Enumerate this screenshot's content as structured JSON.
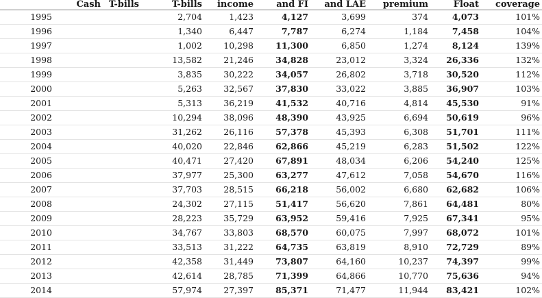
{
  "table": {
    "headers": [
      "",
      "Cash",
      "T-bills",
      "T-bills",
      "income",
      "and FI",
      "and LAE",
      "premium",
      "Float",
      "coverage"
    ],
    "rows": [
      {
        "year": "1995",
        "cash": "",
        "tbills1": "",
        "tbills2": "2,704",
        "income": "1,423",
        "andfi": "4,127",
        "andlae": "3,699",
        "premium": "374",
        "float": "4,073",
        "coverage": "101%"
      },
      {
        "year": "1996",
        "cash": "",
        "tbills1": "",
        "tbills2": "1,340",
        "income": "6,447",
        "andfi": "7,787",
        "andlae": "6,274",
        "premium": "1,184",
        "float": "7,458",
        "coverage": "104%"
      },
      {
        "year": "1997",
        "cash": "",
        "tbills1": "",
        "tbills2": "1,002",
        "income": "10,298",
        "andfi": "11,300",
        "andlae": "6,850",
        "premium": "1,274",
        "float": "8,124",
        "coverage": "139%"
      },
      {
        "year": "1998",
        "cash": "",
        "tbills1": "",
        "tbills2": "13,582",
        "income": "21,246",
        "andfi": "34,828",
        "andlae": "23,012",
        "premium": "3,324",
        "float": "26,336",
        "coverage": "132%"
      },
      {
        "year": "1999",
        "cash": "",
        "tbills1": "",
        "tbills2": "3,835",
        "income": "30,222",
        "andfi": "34,057",
        "andlae": "26,802",
        "premium": "3,718",
        "float": "30,520",
        "coverage": "112%"
      },
      {
        "year": "2000",
        "cash": "",
        "tbills1": "",
        "tbills2": "5,263",
        "income": "32,567",
        "andfi": "37,830",
        "andlae": "33,022",
        "premium": "3,885",
        "float": "36,907",
        "coverage": "103%"
      },
      {
        "year": "2001",
        "cash": "",
        "tbills1": "",
        "tbills2": "5,313",
        "income": "36,219",
        "andfi": "41,532",
        "andlae": "40,716",
        "premium": "4,814",
        "float": "45,530",
        "coverage": "91%"
      },
      {
        "year": "2002",
        "cash": "",
        "tbills1": "",
        "tbills2": "10,294",
        "income": "38,096",
        "andfi": "48,390",
        "andlae": "43,925",
        "premium": "6,694",
        "float": "50,619",
        "coverage": "96%"
      },
      {
        "year": "2003",
        "cash": "",
        "tbills1": "",
        "tbills2": "31,262",
        "income": "26,116",
        "andfi": "57,378",
        "andlae": "45,393",
        "premium": "6,308",
        "float": "51,701",
        "coverage": "111%"
      },
      {
        "year": "2004",
        "cash": "",
        "tbills1": "",
        "tbills2": "40,020",
        "income": "22,846",
        "andfi": "62,866",
        "andlae": "45,219",
        "premium": "6,283",
        "float": "51,502",
        "coverage": "122%"
      },
      {
        "year": "2005",
        "cash": "",
        "tbills1": "",
        "tbills2": "40,471",
        "income": "27,420",
        "andfi": "67,891",
        "andlae": "48,034",
        "premium": "6,206",
        "float": "54,240",
        "coverage": "125%"
      },
      {
        "year": "2006",
        "cash": "",
        "tbills1": "",
        "tbills2": "37,977",
        "income": "25,300",
        "andfi": "63,277",
        "andlae": "47,612",
        "premium": "7,058",
        "float": "54,670",
        "coverage": "116%"
      },
      {
        "year": "2007",
        "cash": "",
        "tbills1": "",
        "tbills2": "37,703",
        "income": "28,515",
        "andfi": "66,218",
        "andlae": "56,002",
        "premium": "6,680",
        "float": "62,682",
        "coverage": "106%"
      },
      {
        "year": "2008",
        "cash": "",
        "tbills1": "",
        "tbills2": "24,302",
        "income": "27,115",
        "andfi": "51,417",
        "andlae": "56,620",
        "premium": "7,861",
        "float": "64,481",
        "coverage": "80%"
      },
      {
        "year": "2009",
        "cash": "",
        "tbills1": "",
        "tbills2": "28,223",
        "income": "35,729",
        "andfi": "63,952",
        "andlae": "59,416",
        "premium": "7,925",
        "float": "67,341",
        "coverage": "95%"
      },
      {
        "year": "2010",
        "cash": "",
        "tbills1": "",
        "tbills2": "34,767",
        "income": "33,803",
        "andfi": "68,570",
        "andlae": "60,075",
        "premium": "7,997",
        "float": "68,072",
        "coverage": "101%"
      },
      {
        "year": "2011",
        "cash": "",
        "tbills1": "",
        "tbills2": "33,513",
        "income": "31,222",
        "andfi": "64,735",
        "andlae": "63,819",
        "premium": "8,910",
        "float": "72,729",
        "coverage": "89%"
      },
      {
        "year": "2012",
        "cash": "",
        "tbills1": "",
        "tbills2": "42,358",
        "income": "31,449",
        "andfi": "73,807",
        "andlae": "64,160",
        "premium": "10,237",
        "float": "74,397",
        "coverage": "99%"
      },
      {
        "year": "2013",
        "cash": "",
        "tbills1": "",
        "tbills2": "42,614",
        "income": "28,785",
        "andfi": "71,399",
        "andlae": "64,866",
        "premium": "10,770",
        "float": "75,636",
        "coverage": "94%"
      },
      {
        "year": "2014",
        "cash": "",
        "tbills1": "",
        "tbills2": "57,974",
        "income": "27,397",
        "andfi": "85,371",
        "andlae": "71,477",
        "premium": "11,944",
        "float": "83,421",
        "coverage": "102%"
      }
    ]
  }
}
